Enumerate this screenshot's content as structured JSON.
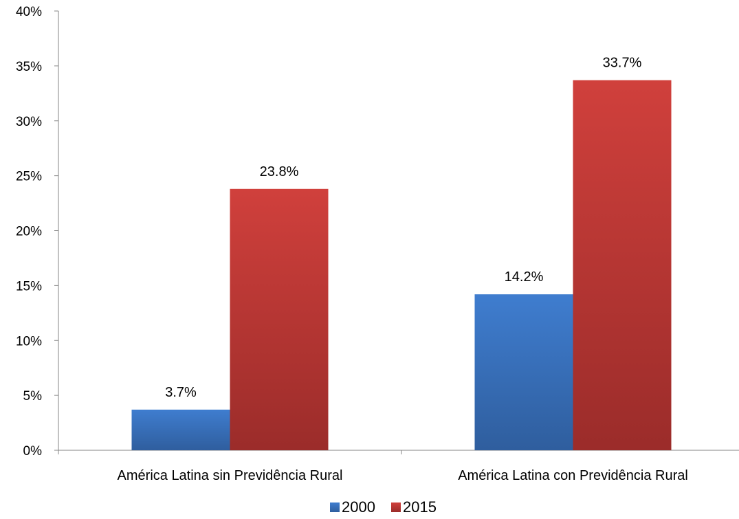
{
  "chart_data": {
    "type": "bar",
    "categories": [
      "América Latina sin Previdência Rural",
      "América Latina con Previdência Rural"
    ],
    "series": [
      {
        "name": "2000",
        "values": [
          3.7,
          14.2
        ],
        "labels": [
          "3.7%",
          "14.2%"
        ],
        "color": "#3a72c2"
      },
      {
        "name": "2015",
        "values": [
          23.8,
          33.7
        ],
        "labels": [
          "23.8%",
          "33.7%"
        ],
        "color": "#c63b38"
      }
    ],
    "y_ticks": [
      {
        "value": 0,
        "label": "0%"
      },
      {
        "value": 5,
        "label": "5%"
      },
      {
        "value": 10,
        "label": "10%"
      },
      {
        "value": 15,
        "label": "15%"
      },
      {
        "value": 20,
        "label": "20%"
      },
      {
        "value": 25,
        "label": "25%"
      },
      {
        "value": 30,
        "label": "30%"
      },
      {
        "value": 35,
        "label": "35%"
      },
      {
        "value": 40,
        "label": "40%"
      }
    ],
    "ylim": [
      0,
      40
    ],
    "title": "",
    "xlabel": "",
    "ylabel": "",
    "grid": false,
    "legend_position": "bottom"
  }
}
